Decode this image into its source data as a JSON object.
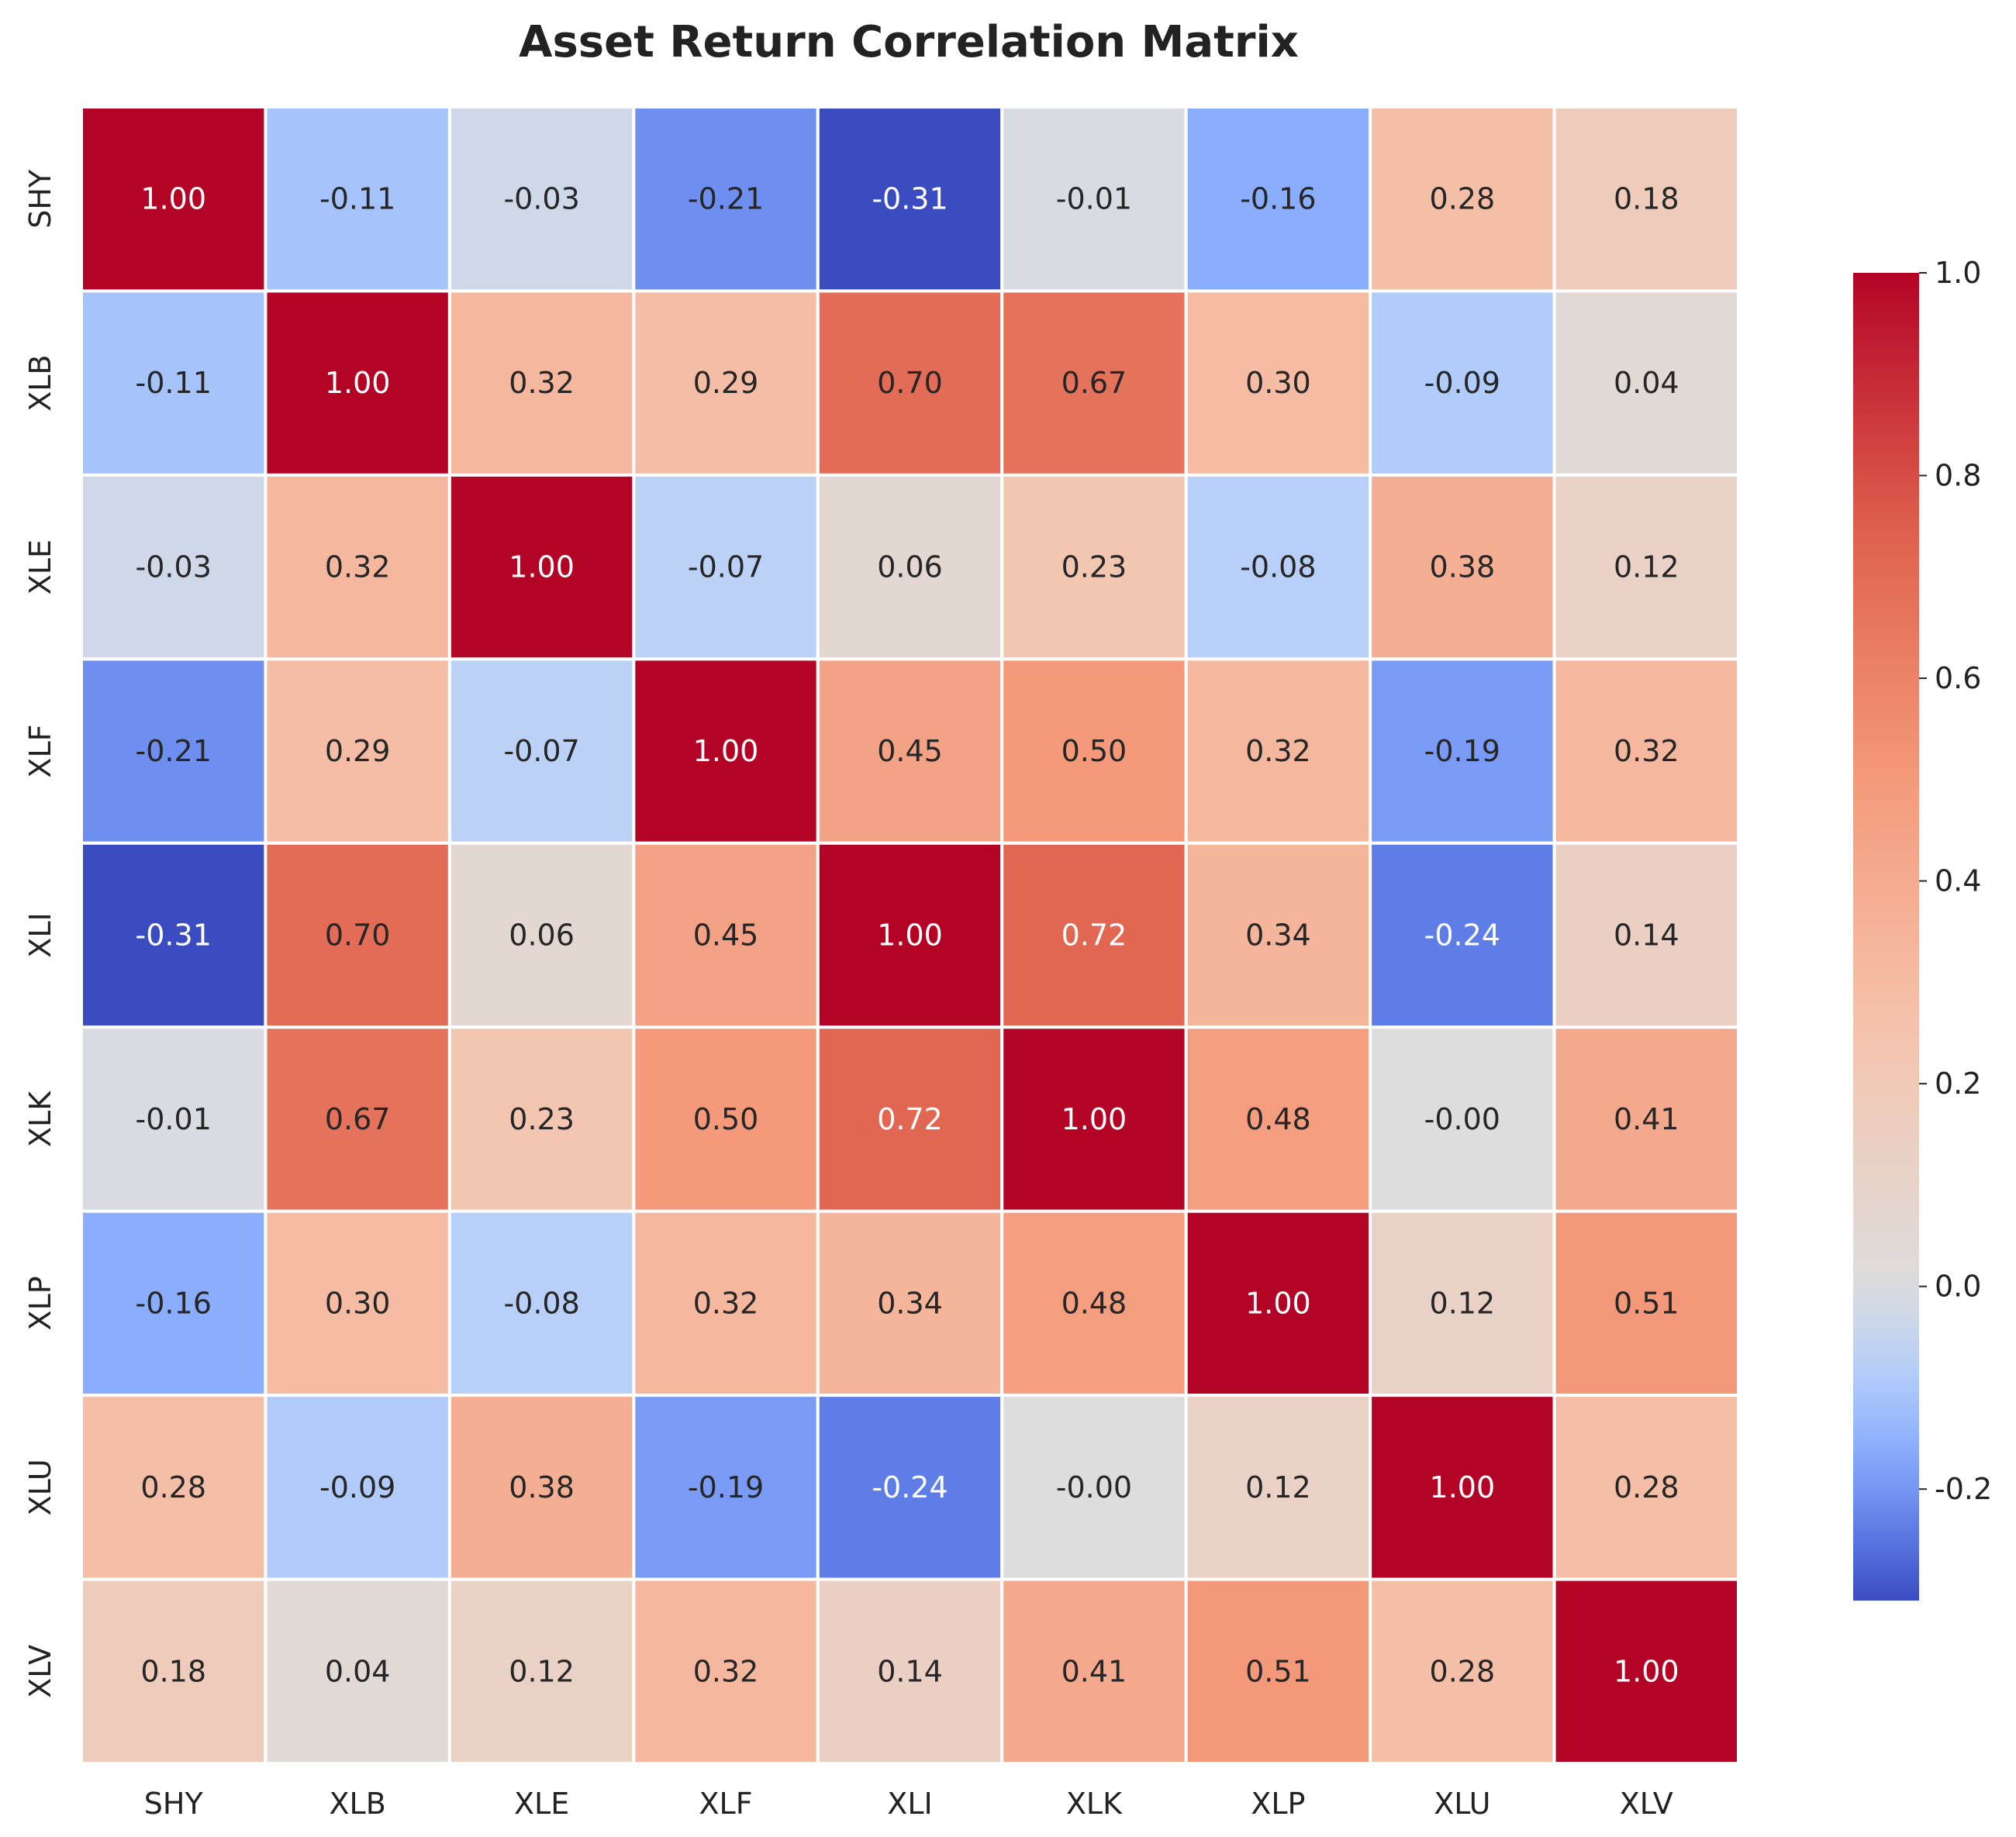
{
  "chart_data": {
    "type": "heatmap",
    "title": "Asset Return Correlation Matrix",
    "xlabel": "",
    "ylabel": "",
    "rows": [
      "SHY",
      "XLB",
      "XLE",
      "XLF",
      "XLI",
      "XLK",
      "XLP",
      "XLU",
      "XLV"
    ],
    "columns": [
      "SHY",
      "XLB",
      "XLE",
      "XLF",
      "XLI",
      "XLK",
      "XLP",
      "XLU",
      "XLV"
    ],
    "values": [
      [
        1.0,
        -0.11,
        -0.03,
        -0.21,
        -0.31,
        -0.01,
        -0.16,
        0.28,
        0.18
      ],
      [
        -0.11,
        1.0,
        0.32,
        0.29,
        0.7,
        0.67,
        0.3,
        -0.09,
        0.04
      ],
      [
        -0.03,
        0.32,
        1.0,
        -0.07,
        0.06,
        0.23,
        -0.08,
        0.38,
        0.12
      ],
      [
        -0.21,
        0.29,
        -0.07,
        1.0,
        0.45,
        0.5,
        0.32,
        -0.19,
        0.32
      ],
      [
        -0.31,
        0.7,
        0.06,
        0.45,
        1.0,
        0.72,
        0.34,
        -0.24,
        0.14
      ],
      [
        -0.01,
        0.67,
        0.23,
        0.5,
        0.72,
        1.0,
        0.48,
        -0.0,
        0.41
      ],
      [
        -0.16,
        0.3,
        -0.08,
        0.32,
        0.34,
        0.48,
        1.0,
        0.12,
        0.51
      ],
      [
        0.28,
        -0.09,
        0.38,
        -0.19,
        -0.24,
        -0.0,
        0.12,
        1.0,
        0.28
      ],
      [
        0.18,
        0.04,
        0.12,
        0.32,
        0.14,
        0.41,
        0.51,
        0.28,
        1.0
      ]
    ],
    "cell_labels": [
      [
        "1.00",
        "-0.11",
        "-0.03",
        "-0.21",
        "-0.31",
        "-0.01",
        "-0.16",
        "0.28",
        "0.18"
      ],
      [
        "-0.11",
        "1.00",
        "0.32",
        "0.29",
        "0.70",
        "0.67",
        "0.30",
        "-0.09",
        "0.04"
      ],
      [
        "-0.03",
        "0.32",
        "1.00",
        "-0.07",
        "0.06",
        "0.23",
        "-0.08",
        "0.38",
        "0.12"
      ],
      [
        "-0.21",
        "0.29",
        "-0.07",
        "1.00",
        "0.45",
        "0.50",
        "0.32",
        "-0.19",
        "0.32"
      ],
      [
        "-0.31",
        "0.70",
        "0.06",
        "0.45",
        "1.00",
        "0.72",
        "0.34",
        "-0.24",
        "0.14"
      ],
      [
        "-0.01",
        "0.67",
        "0.23",
        "0.50",
        "0.72",
        "1.00",
        "0.48",
        "-0.00",
        "0.41"
      ],
      [
        "-0.16",
        "0.30",
        "-0.08",
        "0.32",
        "0.34",
        "0.48",
        "1.00",
        "0.12",
        "0.51"
      ],
      [
        "0.28",
        "-0.09",
        "0.38",
        "-0.19",
        "-0.24",
        "-0.00",
        "0.12",
        "1.00",
        "0.28"
      ],
      [
        "0.18",
        "0.04",
        "0.12",
        "0.32",
        "0.14",
        "0.41",
        "0.51",
        "0.28",
        "1.00"
      ]
    ],
    "colormap": "coolwarm",
    "color_range": [
      -0.31,
      1.0
    ],
    "colorbar": {
      "ticks": [
        -0.2,
        0.0,
        0.2,
        0.4,
        0.6,
        0.8,
        1.0
      ],
      "tick_labels": [
        "-0.2",
        "0.0",
        "0.2",
        "0.4",
        "0.6",
        "0.8",
        "1.0"
      ],
      "placement": "right"
    },
    "grid": false,
    "legend": "none",
    "cell_border_color": "#ffffff"
  }
}
